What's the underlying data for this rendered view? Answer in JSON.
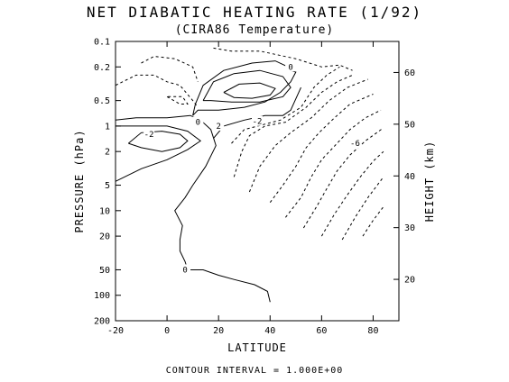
{
  "chart_data": {
    "type": "contour",
    "title": "NET DIABATIC HEATING RATE (1/92)",
    "subtitle": "(CIRA86 Temperature)",
    "xlabel": "LATITUDE",
    "ylabel": "PRESSURE (hPa)",
    "y2label": "HEIGHT (km)",
    "footnote": "CONTOUR INTERVAL = 1.000E+00",
    "xlim": [
      -20,
      90
    ],
    "ylim": [
      200,
      0.1
    ],
    "yscale": "log",
    "y2lim_km": [
      12,
      66
    ],
    "x_ticks": [
      "-20",
      "0",
      "20",
      "40",
      "60",
      "80"
    ],
    "y_ticks": [
      "0.1",
      "0.2",
      "0.5",
      "1",
      "2",
      "5",
      "10",
      "20",
      "50",
      "100",
      "200"
    ],
    "y2_ticks": [
      "20",
      "30",
      "40",
      "50",
      "60"
    ],
    "contour_interval": 1.0,
    "contour_labels": [
      "0",
      "-2",
      "2",
      "0",
      "-2",
      "-6",
      "0"
    ],
    "contours": [
      {
        "level": 0,
        "style": "solid",
        "points": [
          [
            40,
            120
          ],
          [
            39,
            90
          ],
          [
            34,
            75
          ],
          [
            26,
            65
          ],
          [
            20,
            58
          ],
          [
            14,
            50
          ],
          [
            8,
            50
          ],
          [
            7,
            40
          ],
          [
            5,
            30
          ],
          [
            5,
            22
          ],
          [
            6,
            15
          ],
          [
            3,
            10
          ],
          [
            7,
            7
          ],
          [
            10,
            5
          ],
          [
            15,
            3
          ],
          [
            19,
            1.7
          ],
          [
            17,
            1.1
          ],
          [
            13,
            0.85
          ],
          [
            9,
            0.75
          ],
          [
            0,
            0.8
          ],
          [
            -12,
            0.8
          ],
          [
            -20,
            0.85
          ]
        ]
      },
      {
        "level": 1,
        "style": "solid",
        "points": [
          [
            -20,
            4.5
          ],
          [
            -10,
            3.2
          ],
          [
            0,
            2.5
          ],
          [
            8,
            1.9
          ],
          [
            13,
            1.5
          ],
          [
            8,
            1.15
          ],
          [
            0,
            1.0
          ],
          [
            -10,
            1.0
          ],
          [
            -20,
            1.0
          ]
        ]
      },
      {
        "level": 2,
        "style": "solid",
        "points": [
          [
            -15,
            1.6
          ],
          [
            -10,
            1.8
          ],
          [
            -2,
            2.0
          ],
          [
            5,
            1.8
          ],
          [
            8,
            1.5
          ],
          [
            5,
            1.25
          ],
          [
            -2,
            1.15
          ],
          [
            -10,
            1.2
          ],
          [
            -15,
            1.6
          ]
        ]
      },
      {
        "level": 0,
        "style": "solid",
        "points": [
          [
            10,
            0.75
          ],
          [
            11,
            0.55
          ],
          [
            14,
            0.33
          ],
          [
            22,
            0.22
          ],
          [
            33,
            0.18
          ],
          [
            42,
            0.17
          ],
          [
            47,
            0.2
          ],
          [
            48,
            0.22
          ],
          [
            50,
            0.23
          ],
          [
            48,
            0.3
          ],
          [
            44,
            0.4
          ],
          [
            38,
            0.52
          ],
          [
            30,
            0.6
          ],
          [
            20,
            0.65
          ],
          [
            12,
            0.65
          ],
          [
            10,
            0.75
          ]
        ]
      },
      {
        "level": 1,
        "style": "solid",
        "points": [
          [
            14,
            0.5
          ],
          [
            18,
            0.3
          ],
          [
            26,
            0.24
          ],
          [
            36,
            0.22
          ],
          [
            45,
            0.26
          ],
          [
            48,
            0.35
          ],
          [
            45,
            0.45
          ],
          [
            36,
            0.52
          ],
          [
            25,
            0.52
          ],
          [
            17,
            0.5
          ],
          [
            14,
            0.5
          ]
        ]
      },
      {
        "level": 2,
        "style": "solid",
        "points": [
          [
            22,
            0.4
          ],
          [
            28,
            0.32
          ],
          [
            36,
            0.31
          ],
          [
            42,
            0.36
          ],
          [
            40,
            0.43
          ],
          [
            33,
            0.47
          ],
          [
            26,
            0.46
          ],
          [
            22,
            0.4
          ]
        ]
      },
      {
        "level": 0,
        "style": "solid",
        "points": [
          [
            18,
            1.4
          ],
          [
            22,
            1.0
          ],
          [
            30,
            0.85
          ],
          [
            38,
            0.75
          ],
          [
            45,
            0.75
          ],
          [
            48,
            0.65
          ],
          [
            52,
            0.35
          ]
        ]
      },
      {
        "level": -1,
        "style": "dashed",
        "points": [
          [
            -20,
            0.33
          ],
          [
            -12,
            0.25
          ],
          [
            -5,
            0.25
          ],
          [
            0,
            0.3
          ],
          [
            5,
            0.33
          ],
          [
            10,
            0.5
          ],
          [
            12,
            0.6
          ]
        ]
      },
      {
        "level": -1,
        "style": "dashed",
        "points": [
          [
            -10,
            0.18
          ],
          [
            -5,
            0.15
          ],
          [
            3,
            0.16
          ],
          [
            10,
            0.2
          ],
          [
            12,
            0.3
          ]
        ]
      },
      {
        "level": -1,
        "style": "dashed",
        "points": [
          [
            0,
            0.45
          ],
          [
            5,
            0.55
          ],
          [
            8,
            0.55
          ],
          [
            6,
            0.45
          ],
          [
            0,
            0.45
          ]
        ]
      },
      {
        "level": -1,
        "style": "dashed",
        "points": [
          [
            18,
            0.12
          ],
          [
            25,
            0.13
          ],
          [
            36,
            0.13
          ],
          [
            50,
            0.16
          ],
          [
            60,
            0.2
          ],
          [
            67,
            0.19
          ],
          [
            72,
            0.22
          ]
        ]
      },
      {
        "level": -1,
        "style": "dashed",
        "points": [
          [
            25,
            1.6
          ],
          [
            30,
            1.1
          ],
          [
            38,
            0.95
          ],
          [
            44,
            0.85
          ],
          [
            52,
            0.6
          ],
          [
            57,
            0.35
          ],
          [
            62,
            0.25
          ],
          [
            67,
            0.2
          ]
        ]
      },
      {
        "level": -2,
        "style": "dashed",
        "points": [
          [
            26,
            4
          ],
          [
            29,
            2
          ],
          [
            32,
            1.3
          ],
          [
            38,
            1.0
          ],
          [
            46,
            0.9
          ],
          [
            54,
            0.6
          ],
          [
            60,
            0.4
          ],
          [
            66,
            0.3
          ],
          [
            72,
            0.25
          ]
        ]
      },
      {
        "level": -3,
        "style": "dashed",
        "points": [
          [
            32,
            6
          ],
          [
            36,
            3
          ],
          [
            42,
            1.7
          ],
          [
            48,
            1.2
          ],
          [
            56,
            0.8
          ],
          [
            63,
            0.5
          ],
          [
            70,
            0.35
          ],
          [
            78,
            0.28
          ]
        ]
      },
      {
        "level": -4,
        "style": "dashed",
        "points": [
          [
            40,
            8
          ],
          [
            45,
            5
          ],
          [
            50,
            3
          ],
          [
            54,
            1.8
          ],
          [
            59,
            1.2
          ],
          [
            65,
            0.8
          ],
          [
            71,
            0.55
          ],
          [
            80,
            0.42
          ]
        ]
      },
      {
        "level": -5,
        "style": "dashed",
        "points": [
          [
            46,
            12
          ],
          [
            52,
            7
          ],
          [
            56,
            4
          ],
          [
            60,
            2.5
          ],
          [
            66,
            1.6
          ],
          [
            71,
            1.1
          ],
          [
            77,
            0.8
          ],
          [
            83,
            0.65
          ]
        ]
      },
      {
        "level": -6,
        "style": "dashed",
        "points": [
          [
            53,
            16
          ],
          [
            58,
            9
          ],
          [
            62,
            5.5
          ],
          [
            66,
            3.4
          ],
          [
            71,
            2.2
          ],
          [
            77,
            1.5
          ],
          [
            84,
            1.05
          ]
        ]
      },
      {
        "level": -7,
        "style": "dashed",
        "points": [
          [
            60,
            20
          ],
          [
            65,
            11
          ],
          [
            70,
            6.5
          ],
          [
            75,
            4
          ],
          [
            80,
            2.6
          ],
          [
            84,
            2.0
          ]
        ]
      },
      {
        "level": -8,
        "style": "dashed",
        "points": [
          [
            68,
            22
          ],
          [
            73,
            12
          ],
          [
            78,
            7
          ],
          [
            84,
            4
          ]
        ]
      },
      {
        "level": -9,
        "style": "dashed",
        "points": [
          [
            76,
            20
          ],
          [
            80,
            13
          ],
          [
            84,
            9
          ]
        ]
      }
    ]
  }
}
